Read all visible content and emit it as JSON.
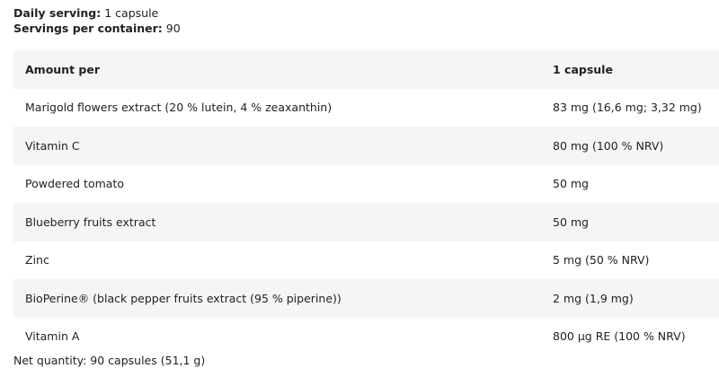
{
  "serving": {
    "daily_label": "Daily serving:",
    "daily_value": "1 capsule",
    "per_container_label": "Servings per container:",
    "per_container_value": "90"
  },
  "table": {
    "headers": [
      "Amount per",
      "1 capsule"
    ],
    "rows": [
      [
        "Marigold flowers extract (20 % lutein, 4 % zeaxanthin)",
        "83 mg (16,6 mg; 3,32 mg)"
      ],
      [
        "Vitamin C",
        "80 mg (100 % NRV)"
      ],
      [
        "Powdered tomato",
        "50 mg"
      ],
      [
        "Blueberry fruits extract",
        "50 mg"
      ],
      [
        "Zinc",
        "5 mg (50 % NRV)"
      ],
      [
        "BioPerine® (black pepper fruits extract (95 % piperine))",
        "2 mg (1,9 mg)"
      ],
      [
        "Vitamin A",
        "800 µg RE (100 % NRV)"
      ]
    ]
  },
  "net_quantity": "Net quantity: 90 capsules (51,1 g)"
}
